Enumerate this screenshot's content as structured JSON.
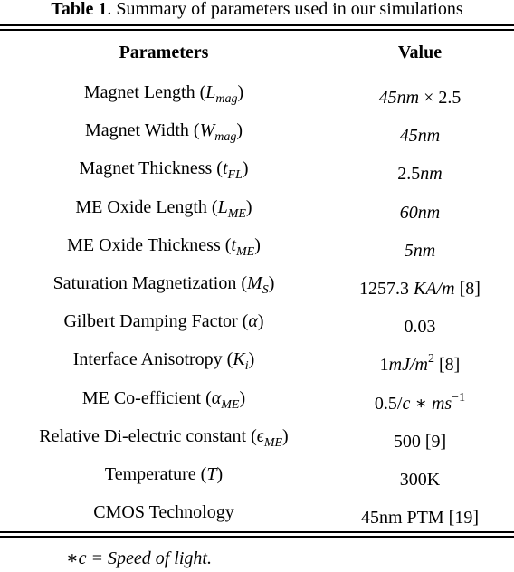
{
  "caption": {
    "label": "Table 1",
    "text": ". Summary of parameters used in our simulations"
  },
  "table": {
    "headers": [
      "Parameters",
      "Value"
    ],
    "rows": [
      {
        "param": {
          "text": "Magnet Length (",
          "sym": "L",
          "sub": "mag",
          "close": ")"
        },
        "value": {
          "pre": "",
          "math": "45nm",
          "mid": " × 2.5",
          "sup": "",
          "post": ""
        }
      },
      {
        "param": {
          "text": "Magnet Width (",
          "sym": "W",
          "sub": "mag",
          "close": ")"
        },
        "value": {
          "pre": "",
          "math": "45nm",
          "mid": "",
          "sup": "",
          "post": ""
        }
      },
      {
        "param": {
          "text": "Magnet Thickness (",
          "sym": "t",
          "sub": "FL",
          "close": ")"
        },
        "value": {
          "pre": "2.5",
          "math": "nm",
          "mid": "",
          "sup": "",
          "post": ""
        }
      },
      {
        "param": {
          "text": "ME Oxide Length (",
          "sym": "L",
          "sub": "ME",
          "close": ")"
        },
        "value": {
          "pre": "",
          "math": "60nm",
          "mid": "",
          "sup": "",
          "post": ""
        }
      },
      {
        "param": {
          "text": "ME Oxide Thickness (",
          "sym": "t",
          "sub": "ME",
          "close": ")"
        },
        "value": {
          "pre": "",
          "math": "5nm",
          "mid": "",
          "sup": "",
          "post": ""
        }
      },
      {
        "param": {
          "text": "Saturation Magnetization (",
          "sym": "M",
          "sub": "S",
          "close": ")"
        },
        "value": {
          "pre": "1257.3 ",
          "math": "KA/m",
          "mid": "",
          "sup": "",
          "post": " [8]"
        }
      },
      {
        "param": {
          "text": "Gilbert Damping Factor (",
          "sym": "α",
          "sub": "",
          "close": ")"
        },
        "value": {
          "pre": "0.03",
          "math": "",
          "mid": "",
          "sup": "",
          "post": ""
        }
      },
      {
        "param": {
          "text": "Interface Anisotropy (",
          "sym": "K",
          "sub": "i",
          "close": ")"
        },
        "value": {
          "pre": "1",
          "math": "mJ/m",
          "mid": "",
          "sup": "2",
          "post": " [8]"
        }
      },
      {
        "param": {
          "text": "ME Co-efficient (",
          "sym": "α",
          "sub": "ME",
          "close": ")"
        },
        "value": {
          "pre": "0.5/",
          "math": "c ∗ ms",
          "mid": "",
          "sup": "−1",
          "post": ""
        }
      },
      {
        "param": {
          "text": "Relative Di-electric constant (",
          "sym": "ϵ",
          "sub": "ME",
          "close": ")"
        },
        "value": {
          "pre": "500 [9]",
          "math": "",
          "mid": "",
          "sup": "",
          "post": ""
        }
      },
      {
        "param": {
          "text": "Temperature (",
          "sym": "T",
          "sub": "",
          "close": ")"
        },
        "value": {
          "pre": "300K",
          "math": "",
          "mid": "",
          "sup": "",
          "post": ""
        }
      },
      {
        "param": {
          "text": "CMOS Technology",
          "sym": "",
          "sub": "",
          "close": ""
        },
        "value": {
          "pre": "45nm PTM [19]",
          "math": "",
          "mid": "",
          "sup": "",
          "post": ""
        }
      }
    ]
  },
  "footnote": "∗c = Speed of light."
}
